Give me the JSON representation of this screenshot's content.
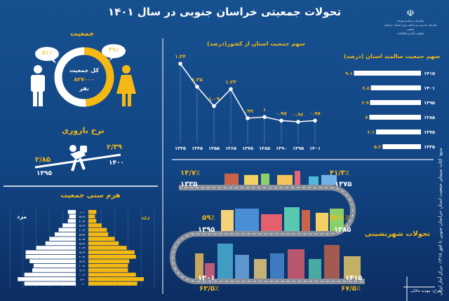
{
  "title": "تحولات جمعیتی خراسان جنوبی در سال ۱۴۰۱",
  "logo": {
    "emblem": "iran-emblem",
    "lines": [
      "سازمان برنامه و بودجه",
      "سازمان مدیریت و برنامه ریزی استان خراسان جنوبی",
      "معاونت آمار و اطلاعات"
    ]
  },
  "population": {
    "heading": "جمعیت",
    "male_percent": "۵۱٪",
    "female_percent": "۴۹٪",
    "female_share": 49,
    "total_label": "کل جمعیت",
    "total_value": "۸۲۷۰۰۰",
    "unit": "نفر",
    "colors": {
      "female": "#f6b914",
      "male": "#ffffff"
    }
  },
  "fertility": {
    "heading": "نرخ باروری",
    "left_value": "۲/۸۵",
    "left_year": "۱۳۹۵",
    "right_value": "۲/۳۹",
    "right_year": "۱۴۰۰"
  },
  "chart_data": [
    {
      "type": "line",
      "title": "سهم جمعیت استان از کشور(درصد)",
      "categories": [
        "۱۳۳۵",
        "۱۳۴۵",
        "۱۳۵۵",
        "۱۳۶۵",
        "۱۳۷۵",
        "۱۳۸۵",
        "۱۳۹۰",
        "۱۳۹۵",
        "۱۴۰۱"
      ],
      "values": [
        1.44,
        1.25,
        1.09,
        1.23,
        0.99,
        1,
        0.97,
        0.96,
        0.97
      ],
      "labels": [
        "۱.۴۴",
        "۱.۲۵",
        "۱.۰۹",
        "۱.۲۳",
        "۰.۹۹",
        "۱",
        "۰.۹۷",
        "۰.۹۶",
        "۰.۹۷"
      ]
    },
    {
      "type": "bar",
      "orientation": "horizontal",
      "title": "سهم جمعیت سالمند استان (درصد)",
      "categories": [
        "۱۴۱۵",
        "۱۴۰۱",
        "۱۳۹۵",
        "۱۳۸۵",
        "۱۳۷۵",
        "۱۳۳۵"
      ],
      "values": [
        9.1,
        6.8,
        6.9,
        7,
        6.1,
        5.2
      ],
      "labels": [
        "۹.۱",
        "۶.۸",
        "۶.۹",
        "۷",
        "۶.۱",
        "۵.۲"
      ]
    },
    {
      "type": "bar",
      "orientation": "population-pyramid",
      "title": "هرم سنی جمعیت",
      "categories": [
        "۰-۴",
        "۵-۹",
        "۱۰-۱۴",
        "۱۵-۱۹",
        "۲۰-۲۴",
        "۲۵-۲۹",
        "۳۰-۳۴",
        "۳۵-۳۹",
        "۴۰-۴۴",
        "۴۵-۴۹",
        "۵۰-۵۴",
        "۵۵-۵۹",
        "۶۰-۶۴",
        "۶۵-۶۹",
        "۷۰-۷۴",
        "۷۵-۷۹",
        "۸۰+"
      ],
      "series": [
        {
          "name": "مرد",
          "color": "#ffffff",
          "values": [
            39000,
            44000,
            39000,
            33000,
            32000,
            35000,
            38000,
            38000,
            30000,
            23000,
            20000,
            16000,
            13000,
            10000,
            6000,
            5000,
            6000
          ]
        },
        {
          "name": "زن",
          "color": "#f6b914",
          "values": [
            37000,
            42000,
            36000,
            30000,
            30000,
            31000,
            36000,
            35000,
            29000,
            23000,
            20000,
            15000,
            14000,
            10000,
            6000,
            5000,
            6000
          ]
        }
      ],
      "xlim": [
        0,
        50000
      ]
    }
  ],
  "urbanization": {
    "heading": "تحولات شهرنشینی",
    "milestones": [
      {
        "year": "۱۳۳۵",
        "percent": "۱۴/۷٪"
      },
      {
        "year": "۱۳۷۵",
        "percent": "۴۱/۳٪"
      },
      {
        "year": "۱۳۸۵",
        "percent": "۵۲/۱٪"
      },
      {
        "year": "۱۳۹۵",
        "percent": "۵۹٪"
      },
      {
        "year": "۱۴۰۱",
        "percent": "۶۲/۵٪"
      },
      {
        "year": "۱۴۱۵",
        "percent": "۶۷/۵٪"
      }
    ]
  },
  "source": "منبع: کتاب سیمای جمعیت استان خراسان جنوبی تا افق ۱۴۱۵، مرکز آمار ایران",
  "designer": "طراح: مهدیه مالکی"
}
